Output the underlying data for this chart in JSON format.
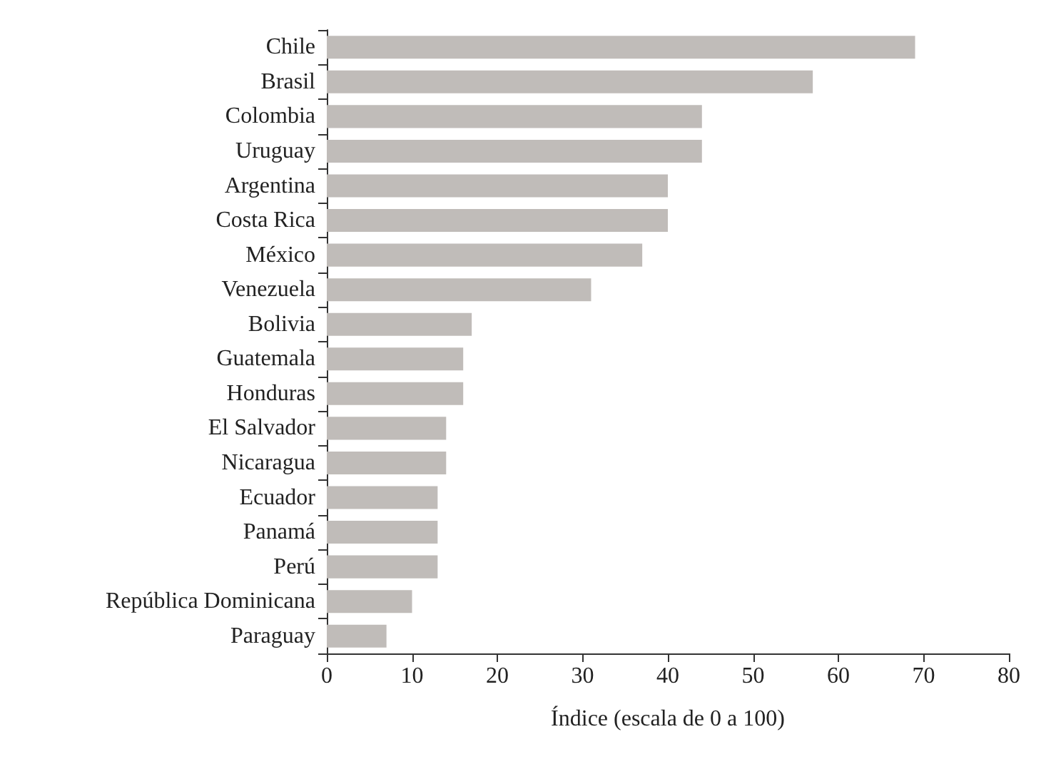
{
  "chart_data": {
    "type": "bar",
    "orientation": "horizontal",
    "xlabel": "Índice (escala de 0 a 100)",
    "categories": [
      "Chile",
      "Brasil",
      "Colombia",
      "Uruguay",
      "Argentina",
      "Costa Rica",
      "México",
      "Venezuela",
      "Bolivia",
      "Guatemala",
      "Honduras",
      "El Salvador",
      "Nicaragua",
      "Ecuador",
      "Panamá",
      "Perú",
      "República Dominicana",
      "Paraguay"
    ],
    "values": [
      69,
      57,
      44,
      44,
      40,
      40,
      37,
      31,
      17,
      16,
      16,
      14,
      14,
      13,
      13,
      13,
      10,
      7
    ],
    "color": "#c0bcb9",
    "xlim": [
      0,
      80
    ],
    "xticks": [
      0,
      10,
      20,
      30,
      40,
      50,
      60,
      70,
      80
    ],
    "grid": false
  }
}
